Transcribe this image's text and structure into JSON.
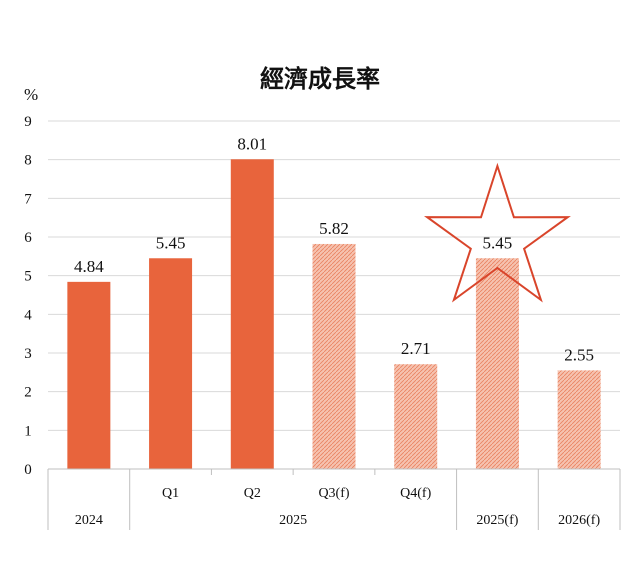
{
  "chart_data": {
    "type": "bar",
    "title": "經濟成長率",
    "ylabel": "%",
    "ylim": [
      0,
      9
    ],
    "yticks": [
      "0",
      "1",
      "2",
      "3",
      "4",
      "5",
      "6",
      "7",
      "8",
      "9"
    ],
    "grid": true,
    "colors": {
      "actual": "#E8643C",
      "forecast": "#F0A88E",
      "star_outline": "#D9452B"
    },
    "categories": [
      "2024",
      "Q1",
      "Q2",
      "Q3(f)",
      "Q4(f)",
      "2025(f)",
      "2026(f)"
    ],
    "values": [
      4.84,
      5.45,
      8.01,
      5.82,
      2.71,
      5.45,
      2.55
    ],
    "data_labels": [
      "4.84",
      "5.45",
      "8.01",
      "5.82",
      "2.71",
      "5.45",
      "2.55"
    ],
    "forecast": [
      false,
      false,
      false,
      true,
      true,
      true,
      true
    ],
    "group_labels": [
      "2024",
      "2025",
      "2025(f)",
      "2026(f)"
    ],
    "highlight_index": 5,
    "highlight_marker": "star-outline"
  }
}
